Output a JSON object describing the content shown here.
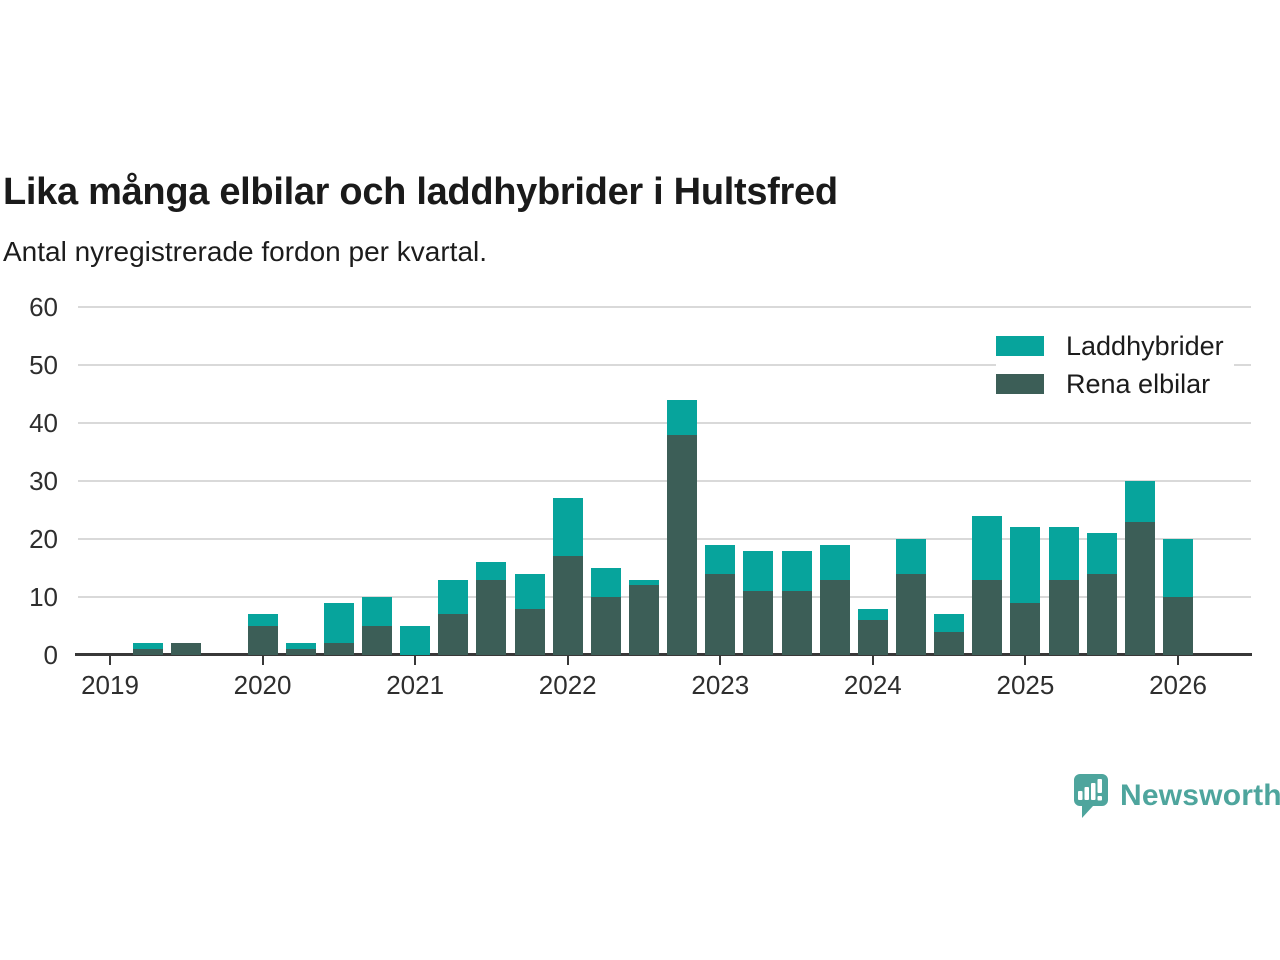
{
  "header": {
    "title": "Lika många elbilar och laddhybrider i Hultsfred",
    "subtitle": "Antal nyregistrerade fordon per kvartal."
  },
  "footer": {
    "brand": "Newsworthy",
    "brand_color": "#4ea59d",
    "logo_icon": "newsworthy-speech-bubble-bar-chart-icon"
  },
  "colors": {
    "laddhybrider": "#07a49c",
    "rena_elbilar": "#3c5e57",
    "axis": "#383838",
    "gridline": "#d9d9d9",
    "tick_label": "#2e2e2e"
  },
  "chart_data": {
    "type": "bar",
    "stacked": true,
    "title": "Lika många elbilar och laddhybrider i Hultsfred",
    "subtitle": "Antal nyregistrerade fordon per kvartal.",
    "xlabel": "",
    "ylabel": "",
    "ylim": [
      0,
      60
    ],
    "yticks": [
      0,
      10,
      20,
      30,
      40,
      50,
      60
    ],
    "grid": "horizontal",
    "legend_position": "top-right",
    "legend_order": [
      1,
      0
    ],
    "categories": [
      "2019 Q1",
      "2019 Q2",
      "2019 Q3",
      "2019 Q4",
      "2020 Q1",
      "2020 Q2",
      "2020 Q3",
      "2020 Q4",
      "2021 Q1",
      "2021 Q2",
      "2021 Q3",
      "2021 Q4",
      "2022 Q1",
      "2022 Q2",
      "2022 Q3",
      "2022 Q4",
      "2023 Q1",
      "2023 Q2",
      "2023 Q3",
      "2023 Q4",
      "2024 Q1",
      "2024 Q2",
      "2024 Q3",
      "2024 Q4",
      "2025 Q1",
      "2025 Q2",
      "2025 Q3",
      "2025 Q4",
      "2026 Q1"
    ],
    "series": [
      {
        "name": "Rena elbilar",
        "color": "#3c5e57",
        "values": [
          0,
          1,
          2,
          0,
          5,
          1,
          2,
          5,
          0,
          7,
          13,
          8,
          17,
          10,
          12,
          38,
          14,
          11,
          11,
          13,
          6,
          14,
          4,
          13,
          9,
          13,
          14,
          23,
          10
        ]
      },
      {
        "name": "Laddhybrider",
        "color": "#07a49c",
        "values": [
          0,
          1,
          0,
          0,
          2,
          1,
          7,
          5,
          5,
          6,
          3,
          6,
          10,
          5,
          1,
          6,
          5,
          7,
          7,
          6,
          2,
          6,
          3,
          11,
          13,
          9,
          7,
          7,
          10
        ]
      }
    ],
    "x_ticks": [
      {
        "label": "2019",
        "quarter_index": 0
      },
      {
        "label": "2020",
        "quarter_index": 4
      },
      {
        "label": "2021",
        "quarter_index": 8
      },
      {
        "label": "2022",
        "quarter_index": 12
      },
      {
        "label": "2023",
        "quarter_index": 16
      },
      {
        "label": "2024",
        "quarter_index": 20
      },
      {
        "label": "2025",
        "quarter_index": 24
      },
      {
        "label": "2026",
        "quarter_index": 28
      }
    ]
  }
}
